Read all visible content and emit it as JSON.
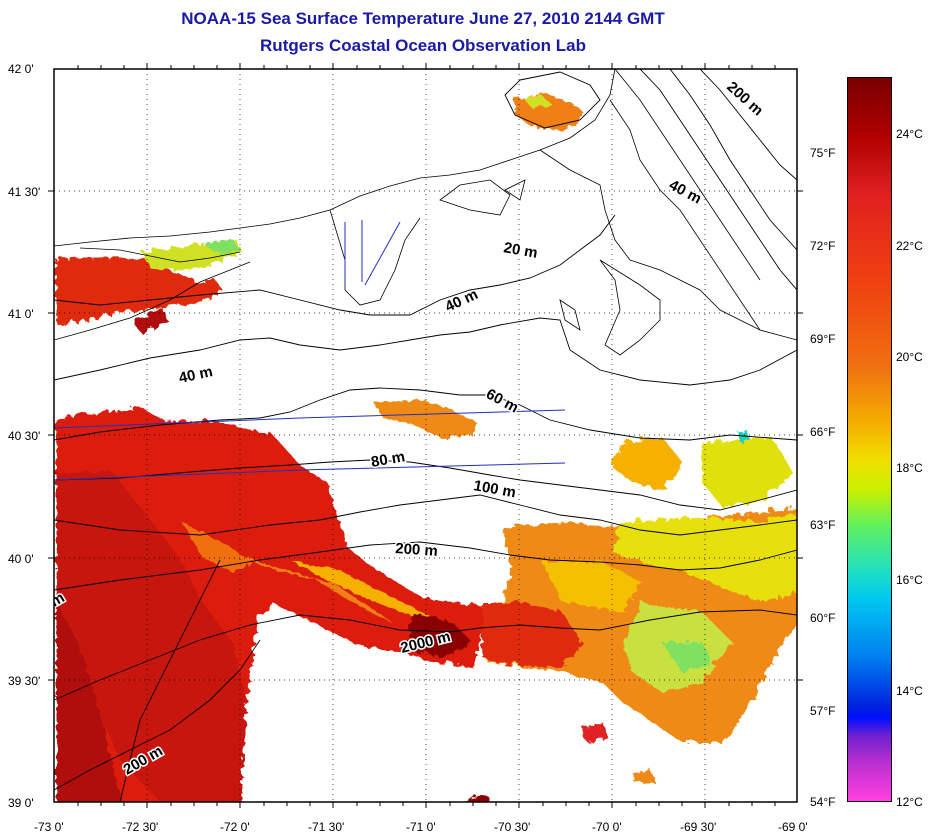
{
  "title": {
    "line1": "NOAA-15 Sea Surface Temperature June 27, 2010 2144 GMT",
    "line2": "Rutgers Coastal Ocean Observation Lab"
  },
  "map": {
    "lat_range": [
      39.0,
      42.0
    ],
    "lon_range": [
      -73.0,
      -69.0
    ],
    "grid": "dotted",
    "lat_labels": [
      "42 0'",
      "41 30'",
      "41 0'",
      "40 30'",
      "40 0'",
      "39 30'",
      "39 0'"
    ],
    "lon_labels": [
      "-73 0'",
      "-72 30'",
      "-72 0'",
      "-71 30'",
      "-71 0'",
      "-70 30'",
      "-70 0'",
      "-69 30'",
      "-69 0'"
    ],
    "depth_contour_labels": [
      "200 m",
      "40 m",
      "20 m",
      "40 m",
      "40 m",
      "60 m",
      "80 m",
      "100 m",
      "200 m",
      "2000 m",
      "200 m",
      "m"
    ]
  },
  "colorbar": {
    "celsius_labels": [
      "24°C",
      "22°C",
      "20°C",
      "18°C",
      "16°C",
      "14°C",
      "12°C"
    ],
    "fahrenheit_labels": [
      "75°F",
      "72°F",
      "69°F",
      "66°F",
      "63°F",
      "60°F",
      "57°F",
      "54°F"
    ],
    "min_c": 12,
    "max_c": 25.5,
    "colors": [
      "#7a0000",
      "#e02020",
      "#f07010",
      "#f0e000",
      "#60f060",
      "#00c8f0",
      "#0020e0",
      "#ff40e0"
    ]
  }
}
